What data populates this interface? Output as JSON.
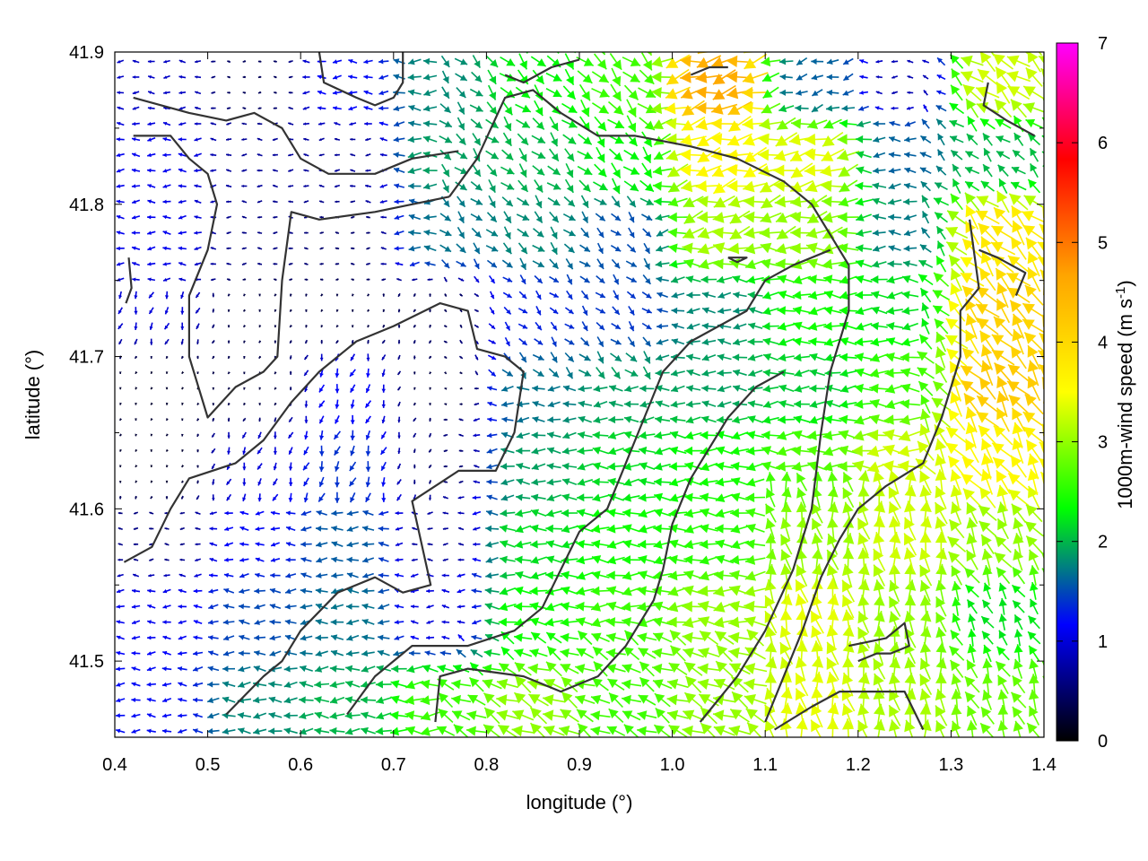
{
  "chart_data": {
    "type": "vector-field",
    "xlabel": "longitude (°)",
    "ylabel": "latitude (°)",
    "xlim": [
      0.4,
      1.4
    ],
    "ylim": [
      41.45,
      41.9
    ],
    "xticks": [
      "0.4",
      "0.5",
      "0.6",
      "0.7",
      "0.8",
      "0.9",
      "1.0",
      "1.1",
      "1.2",
      "1.3",
      "1.4"
    ],
    "yticks": [
      "41.5",
      "41.6",
      "41.7",
      "41.8",
      "41.9"
    ],
    "colorbar": {
      "label_main": "1000m-wind speed (m s",
      "label_sup": "-1",
      "label_end": ")",
      "range": [
        0,
        7
      ],
      "ticks": [
        "0",
        "1",
        "2",
        "3",
        "4",
        "5",
        "6",
        "7"
      ],
      "colors": [
        "#000000",
        "#0000ff",
        "#00ff00",
        "#ffff00",
        "#ffa500",
        "#ff0000",
        "#ff00ff"
      ]
    },
    "contour_color": "#333333",
    "contours": [
      [
        [
          0.42,
          41.87
        ],
        [
          0.48,
          41.86
        ],
        [
          0.52,
          41.855
        ],
        [
          0.55,
          41.86
        ],
        [
          0.58,
          41.85
        ],
        [
          0.6,
          41.83
        ],
        [
          0.63,
          41.82
        ],
        [
          0.68,
          41.82
        ],
        [
          0.72,
          41.83
        ],
        [
          0.77,
          41.835
        ]
      ],
      [
        [
          0.42,
          41.845
        ],
        [
          0.46,
          41.845
        ],
        [
          0.48,
          41.83
        ],
        [
          0.5,
          41.82
        ],
        [
          0.51,
          41.8
        ],
        [
          0.5,
          41.77
        ],
        [
          0.48,
          41.74
        ],
        [
          0.48,
          41.7
        ],
        [
          0.5,
          41.66
        ],
        [
          0.53,
          41.68
        ],
        [
          0.56,
          41.69
        ],
        [
          0.575,
          41.7
        ],
        [
          0.58,
          41.75
        ],
        [
          0.59,
          41.795
        ],
        [
          0.62,
          41.79
        ],
        [
          0.68,
          41.795
        ],
        [
          0.72,
          41.8
        ],
        [
          0.76,
          41.805
        ]
      ],
      [
        [
          0.76,
          41.805
        ],
        [
          0.79,
          41.83
        ],
        [
          0.82,
          41.87
        ],
        [
          0.85,
          41.875
        ],
        [
          0.88,
          41.86
        ],
        [
          0.92,
          41.845
        ],
        [
          0.96,
          41.845
        ],
        [
          1.02,
          41.838
        ],
        [
          1.07,
          41.83
        ],
        [
          1.12,
          41.815
        ],
        [
          1.15,
          41.8
        ],
        [
          1.17,
          41.78
        ],
        [
          1.19,
          41.76
        ],
        [
          1.19,
          41.73
        ],
        [
          1.17,
          41.69
        ],
        [
          1.16,
          41.65
        ],
        [
          1.15,
          41.6
        ],
        [
          1.13,
          41.56
        ],
        [
          1.1,
          41.52
        ],
        [
          1.07,
          41.49
        ],
        [
          1.03,
          41.46
        ]
      ],
      [
        [
          0.45,
          41.73
        ]
      ],
      [
        [
          0.41,
          41.565
        ],
        [
          0.44,
          41.575
        ],
        [
          0.46,
          41.6
        ],
        [
          0.48,
          41.62
        ],
        [
          0.53,
          41.63
        ],
        [
          0.56,
          41.645
        ],
        [
          0.59,
          41.67
        ],
        [
          0.62,
          41.69
        ],
        [
          0.66,
          41.71
        ],
        [
          0.7,
          41.72
        ],
        [
          0.75,
          41.735
        ],
        [
          0.78,
          41.73
        ],
        [
          0.79,
          41.705
        ],
        [
          0.82,
          41.7
        ],
        [
          0.84,
          41.69
        ],
        [
          0.83,
          41.65
        ],
        [
          0.81,
          41.625
        ],
        [
          0.77,
          41.625
        ],
        [
          0.72,
          41.605
        ],
        [
          0.74,
          41.55
        ],
        [
          0.71,
          41.545
        ],
        [
          0.68,
          41.555
        ],
        [
          0.64,
          41.545
        ],
        [
          0.6,
          41.52
        ],
        [
          0.58,
          41.5
        ],
        [
          0.56,
          41.49
        ],
        [
          0.52,
          41.465
        ]
      ],
      [
        [
          0.65,
          41.465
        ],
        [
          0.68,
          41.49
        ],
        [
          0.72,
          41.51
        ],
        [
          0.78,
          41.51
        ],
        [
          0.83,
          41.52
        ],
        [
          0.86,
          41.535
        ],
        [
          0.88,
          41.56
        ],
        [
          0.9,
          41.585
        ],
        [
          0.93,
          41.6
        ],
        [
          0.95,
          41.63
        ],
        [
          0.97,
          41.66
        ],
        [
          0.99,
          41.69
        ],
        [
          1.02,
          41.71
        ],
        [
          1.05,
          41.72
        ],
        [
          1.08,
          41.73
        ],
        [
          1.1,
          41.75
        ],
        [
          1.13,
          41.76
        ],
        [
          1.17,
          41.77
        ]
      ],
      [
        [
          0.745,
          41.46
        ],
        [
          0.75,
          41.49
        ],
        [
          0.78,
          41.495
        ],
        [
          0.84,
          41.49
        ],
        [
          0.88,
          41.48
        ],
        [
          0.92,
          41.49
        ],
        [
          0.95,
          41.51
        ],
        [
          0.98,
          41.54
        ],
        [
          0.99,
          41.56
        ],
        [
          1.0,
          41.59
        ],
        [
          1.02,
          41.62
        ],
        [
          1.04,
          41.64
        ],
        [
          1.06,
          41.66
        ],
        [
          1.09,
          41.68
        ],
        [
          1.12,
          41.69
        ]
      ],
      [
        [
          1.19,
          41.51
        ],
        [
          1.23,
          41.515
        ],
        [
          1.25,
          41.525
        ],
        [
          1.255,
          41.51
        ],
        [
          1.235,
          41.505
        ],
        [
          1.22,
          41.505
        ],
        [
          1.2,
          41.5
        ]
      ],
      [
        [
          1.06,
          41.765
        ],
        [
          1.08,
          41.765
        ],
        [
          1.07,
          41.762
        ],
        [
          1.06,
          41.765
        ]
      ],
      [
        [
          1.11,
          41.455
        ],
        [
          1.15,
          41.47
        ],
        [
          1.18,
          41.48
        ],
        [
          1.22,
          41.48
        ],
        [
          1.25,
          41.48
        ],
        [
          1.27,
          41.455
        ]
      ],
      [
        [
          1.33,
          41.77
        ],
        [
          1.35,
          41.765
        ],
        [
          1.38,
          41.755
        ],
        [
          1.37,
          41.74
        ]
      ],
      [
        [
          1.32,
          41.79
        ],
        [
          1.33,
          41.745
        ],
        [
          1.31,
          41.73
        ],
        [
          1.31,
          41.7
        ],
        [
          1.29,
          41.66
        ],
        [
          1.27,
          41.63
        ],
        [
          1.23,
          41.615
        ],
        [
          1.2,
          41.6
        ],
        [
          1.18,
          41.58
        ],
        [
          1.16,
          41.555
        ],
        [
          1.14,
          41.52
        ],
        [
          1.12,
          41.49
        ],
        [
          1.1,
          41.46
        ]
      ],
      [
        [
          1.34,
          41.88
        ],
        [
          1.335,
          41.865
        ],
        [
          1.36,
          41.855
        ],
        [
          1.39,
          41.845
        ]
      ],
      [
        [
          0.62,
          41.9
        ],
        [
          0.625,
          41.88
        ],
        [
          0.66,
          41.87
        ],
        [
          0.68,
          41.865
        ],
        [
          0.7,
          41.87
        ],
        [
          0.71,
          41.88
        ],
        [
          0.71,
          41.9
        ]
      ],
      [
        [
          0.82,
          41.885
        ],
        [
          0.84,
          41.88
        ],
        [
          0.87,
          41.89
        ],
        [
          0.9,
          41.895
        ]
      ],
      [
        [
          1.02,
          41.885
        ],
        [
          1.04,
          41.89
        ],
        [
          1.06,
          41.89
        ]
      ]
    ],
    "speed_field": {
      "description_points": "wind speed samples (m s-1) at lon,lat",
      "samples": [
        [
          0.45,
          41.88,
          0.9
        ],
        [
          0.55,
          41.88,
          0.4
        ],
        [
          0.65,
          41.88,
          1.2
        ],
        [
          0.75,
          41.88,
          1.8
        ],
        [
          0.85,
          41.88,
          2.3
        ],
        [
          0.95,
          41.88,
          2.6
        ],
        [
          1.05,
          41.88,
          4.6
        ],
        [
          1.15,
          41.88,
          1.6
        ],
        [
          1.25,
          41.88,
          0.8
        ],
        [
          1.35,
          41.88,
          3.3
        ],
        [
          0.45,
          41.83,
          1.1
        ],
        [
          0.55,
          41.83,
          0.7
        ],
        [
          0.65,
          41.83,
          0.7
        ],
        [
          0.75,
          41.83,
          1.9
        ],
        [
          0.85,
          41.83,
          2.0
        ],
        [
          0.95,
          41.83,
          2.3
        ],
        [
          1.05,
          41.83,
          3.6
        ],
        [
          1.15,
          41.83,
          3.4
        ],
        [
          1.25,
          41.83,
          1.6
        ],
        [
          1.35,
          41.83,
          2.0
        ],
        [
          0.45,
          41.78,
          1.1
        ],
        [
          0.55,
          41.78,
          0.6
        ],
        [
          0.65,
          41.78,
          0.5
        ],
        [
          0.75,
          41.78,
          1.7
        ],
        [
          0.85,
          41.78,
          1.8
        ],
        [
          0.95,
          41.78,
          1.5
        ],
        [
          1.05,
          41.78,
          3.1
        ],
        [
          1.15,
          41.78,
          3.0
        ],
        [
          1.25,
          41.78,
          1.7
        ],
        [
          1.35,
          41.78,
          3.8
        ],
        [
          0.45,
          41.73,
          1.0
        ],
        [
          0.55,
          41.73,
          0.3
        ],
        [
          0.65,
          41.73,
          0.3
        ],
        [
          0.75,
          41.73,
          0.4
        ],
        [
          0.85,
          41.73,
          1.3
        ],
        [
          0.95,
          41.73,
          1.4
        ],
        [
          1.05,
          41.73,
          1.8
        ],
        [
          1.15,
          41.73,
          2.4
        ],
        [
          1.25,
          41.73,
          2.2
        ],
        [
          1.35,
          41.73,
          4.1
        ],
        [
          0.45,
          41.68,
          0.2
        ],
        [
          0.55,
          41.68,
          0.3
        ],
        [
          0.65,
          41.68,
          1.2
        ],
        [
          0.75,
          41.68,
          0.3
        ],
        [
          0.85,
          41.68,
          1.7
        ],
        [
          0.95,
          41.68,
          1.9
        ],
        [
          1.05,
          41.68,
          1.9
        ],
        [
          1.15,
          41.68,
          2.1
        ],
        [
          1.25,
          41.68,
          2.6
        ],
        [
          1.35,
          41.68,
          4.2
        ],
        [
          0.45,
          41.63,
          0.2
        ],
        [
          0.55,
          41.63,
          1.0
        ],
        [
          0.65,
          41.63,
          1.4
        ],
        [
          0.75,
          41.63,
          0.5
        ],
        [
          0.85,
          41.63,
          1.9
        ],
        [
          0.95,
          41.63,
          2.2
        ],
        [
          1.05,
          41.63,
          2.4
        ],
        [
          1.15,
          41.63,
          2.7
        ],
        [
          1.25,
          41.63,
          3.3
        ],
        [
          1.35,
          41.63,
          3.6
        ],
        [
          0.45,
          41.58,
          0.6
        ],
        [
          0.55,
          41.58,
          1.2
        ],
        [
          0.65,
          41.58,
          1.6
        ],
        [
          0.75,
          41.58,
          0.7
        ],
        [
          0.85,
          41.58,
          2.2
        ],
        [
          0.95,
          41.58,
          2.4
        ],
        [
          1.05,
          41.58,
          2.5
        ],
        [
          1.15,
          41.58,
          3.0
        ],
        [
          1.25,
          41.58,
          3.3
        ],
        [
          1.35,
          41.58,
          3.0
        ],
        [
          0.45,
          41.53,
          1.1
        ],
        [
          0.55,
          41.53,
          1.5
        ],
        [
          0.65,
          41.53,
          1.7
        ],
        [
          0.75,
          41.53,
          1.0
        ],
        [
          0.85,
          41.53,
          2.4
        ],
        [
          0.95,
          41.53,
          2.6
        ],
        [
          1.05,
          41.53,
          3.0
        ],
        [
          1.15,
          41.53,
          3.4
        ],
        [
          1.25,
          41.53,
          3.0
        ],
        [
          1.35,
          41.53,
          2.2
        ],
        [
          0.45,
          41.47,
          1.2
        ],
        [
          0.55,
          41.47,
          1.8
        ],
        [
          0.65,
          41.47,
          2.0
        ],
        [
          0.75,
          41.47,
          2.6
        ],
        [
          0.85,
          41.47,
          3.0
        ],
        [
          0.95,
          41.47,
          2.6
        ],
        [
          1.05,
          41.47,
          3.0
        ],
        [
          1.15,
          41.47,
          3.4
        ],
        [
          1.25,
          41.47,
          3.1
        ],
        [
          1.35,
          41.47,
          2.8
        ]
      ]
    }
  }
}
